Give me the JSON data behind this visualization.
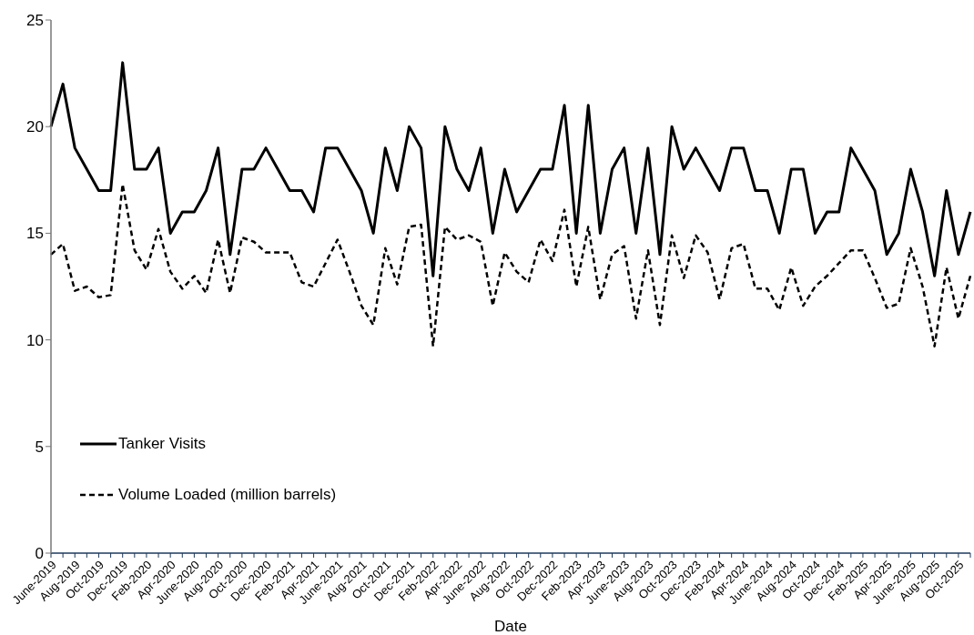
{
  "chart_data": {
    "type": "line",
    "xlabel": "Date",
    "categories": [
      "June-2019",
      null,
      "Aug-2019",
      null,
      "Oct-2019",
      null,
      "Dec-2019",
      null,
      "Feb-2020",
      null,
      "Apr-2020",
      null,
      "June-2020",
      null,
      "Aug-2020",
      null,
      "Oct-2020",
      null,
      "Dec-2020",
      null,
      "Feb-2021",
      null,
      "Apr-2021",
      null,
      "June-2021",
      null,
      "Aug-2021",
      null,
      "Oct-2021",
      null,
      "Dec-2021",
      null,
      "Feb-2022",
      null,
      "Apr-2022",
      null,
      "June-2022",
      null,
      "Aug-2022",
      null,
      "Oct-2022",
      null,
      "Dec-2022",
      null,
      "Feb-2023",
      null,
      "Apr-2023",
      null,
      "June-2023",
      null,
      "Aug-2023",
      null,
      "Oct-2023",
      null,
      "Dec-2023",
      null,
      "Feb-2024",
      null,
      "Apr-2024",
      null,
      "June-2024",
      null,
      "Aug-2024",
      null,
      "Oct-2024",
      null,
      "Dec-2024",
      null,
      "Feb-2025",
      null,
      "Apr-2025",
      null,
      "June-2025",
      null,
      "Aug-2025",
      null,
      "Oct-2025",
      null
    ],
    "series": [
      {
        "name": "Tanker Visits",
        "color": "#000000",
        "line_style": "solid",
        "values": [
          20,
          22,
          19,
          18,
          17,
          17,
          23,
          18,
          18,
          19,
          15,
          16,
          16,
          17,
          19,
          14,
          18,
          18,
          19,
          18,
          17,
          17,
          16,
          19,
          19,
          18,
          17,
          15,
          19,
          17,
          20,
          19,
          13,
          20,
          18,
          17,
          19,
          15,
          18,
          16,
          17,
          18,
          18,
          21,
          15,
          21,
          15,
          18,
          19,
          15,
          19,
          14,
          20,
          18,
          19,
          18,
          17,
          19,
          19,
          17,
          17,
          15,
          18,
          18,
          15,
          16,
          16,
          19,
          18,
          17,
          14,
          15,
          18,
          16,
          13,
          17,
          14,
          16
        ]
      },
      {
        "name": "Volume Loaded (million barrels)",
        "color": "#000000",
        "line_style": "dashed",
        "values": [
          14.0,
          14.5,
          12.3,
          12.5,
          12.0,
          12.1,
          17.3,
          14.2,
          13.3,
          15.2,
          13.2,
          12.4,
          13.0,
          12.2,
          14.7,
          12.2,
          14.8,
          14.6,
          14.1,
          14.1,
          14.1,
          12.7,
          12.5,
          13.6,
          14.7,
          13.2,
          11.6,
          10.7,
          14.3,
          12.6,
          15.3,
          15.4,
          9.7,
          15.3,
          14.7,
          14.9,
          14.6,
          11.6,
          14.1,
          13.2,
          12.7,
          14.7,
          13.7,
          16.1,
          12.5,
          15.3,
          11.9,
          14.0,
          14.4,
          11.0,
          14.2,
          10.7,
          14.9,
          12.9,
          14.9,
          14.1,
          11.9,
          14.3,
          14.5,
          12.4,
          12.4,
          11.4,
          13.4,
          11.6,
          12.5,
          13.0,
          13.6,
          14.2,
          14.2,
          12.9,
          11.5,
          11.7,
          14.3,
          12.5,
          9.7,
          13.4,
          11.0,
          13.0
        ]
      }
    ],
    "ylim": [
      0,
      25
    ],
    "yticks": [
      0,
      5,
      10,
      15,
      20,
      25
    ],
    "grid": false,
    "legend": "bottom left",
    "marker": "none"
  }
}
